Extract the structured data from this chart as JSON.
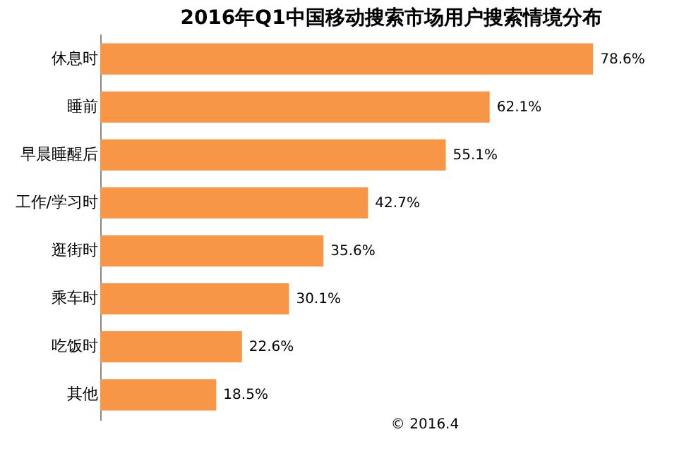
{
  "chart_data": {
    "type": "bar",
    "orientation": "horizontal",
    "title": "2016年Q1中国移动搜索市场用户搜索情境分布",
    "categories": [
      "休息时",
      "睡前",
      "早晨睡醒后",
      "工作/学习时",
      "逛街时",
      "乘车时",
      "吃饭时",
      "其他"
    ],
    "values": [
      78.6,
      62.1,
      55.1,
      42.7,
      35.6,
      30.1,
      22.6,
      18.5
    ],
    "value_labels": [
      "78.6%",
      "62.1%",
      "55.1%",
      "42.7%",
      "35.6%",
      "30.1%",
      "22.6%",
      "18.5%"
    ],
    "color": "#f79646",
    "tick_labels": "y",
    "annotations": [
      "© 2016.4"
    ]
  }
}
